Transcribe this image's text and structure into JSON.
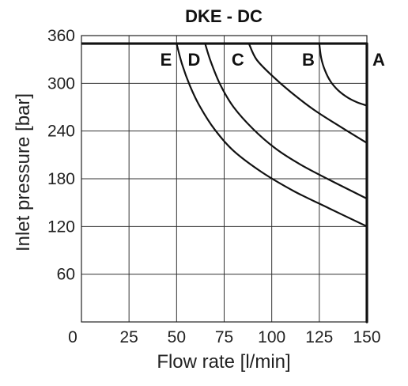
{
  "chart_data": {
    "type": "line",
    "title": "DKE - DC",
    "xlabel": "Flow rate [l/min]",
    "ylabel": "Inlet pressure [bar]",
    "xlim": [
      0,
      150
    ],
    "ylim": [
      0,
      360
    ],
    "xticks": [
      "0",
      "25",
      "50",
      "75",
      "100",
      "125",
      "150"
    ],
    "yticks": [
      "60",
      "120",
      "180",
      "240",
      "300",
      "360"
    ],
    "grid": true,
    "max_pressure": 350,
    "series": [
      {
        "name": "E",
        "x": [
          50,
          53,
          57,
          62,
          70,
          80,
          95,
          112,
          130,
          150
        ],
        "y": [
          350,
          323,
          297,
          272,
          242,
          215,
          188,
          164,
          143,
          120
        ]
      },
      {
        "name": "D",
        "x": [
          65,
          68,
          73,
          80,
          90,
          102,
          115,
          130,
          150
        ],
        "y": [
          350,
          327,
          298,
          270,
          243,
          218,
          198,
          179,
          155
        ]
      },
      {
        "name": "C",
        "x": [
          88,
          92,
          100,
          110,
          122,
          135,
          150
        ],
        "y": [
          350,
          330,
          310,
          289,
          267,
          247,
          225
        ]
      },
      {
        "name": "B",
        "x": [
          125,
          126,
          128,
          131,
          135,
          140,
          145,
          150
        ],
        "y": [
          350,
          332,
          316,
          302,
          291,
          282,
          276,
          272
        ]
      },
      {
        "name": "A",
        "x": [
          150,
          150
        ],
        "y": [
          350,
          0
        ]
      }
    ]
  }
}
